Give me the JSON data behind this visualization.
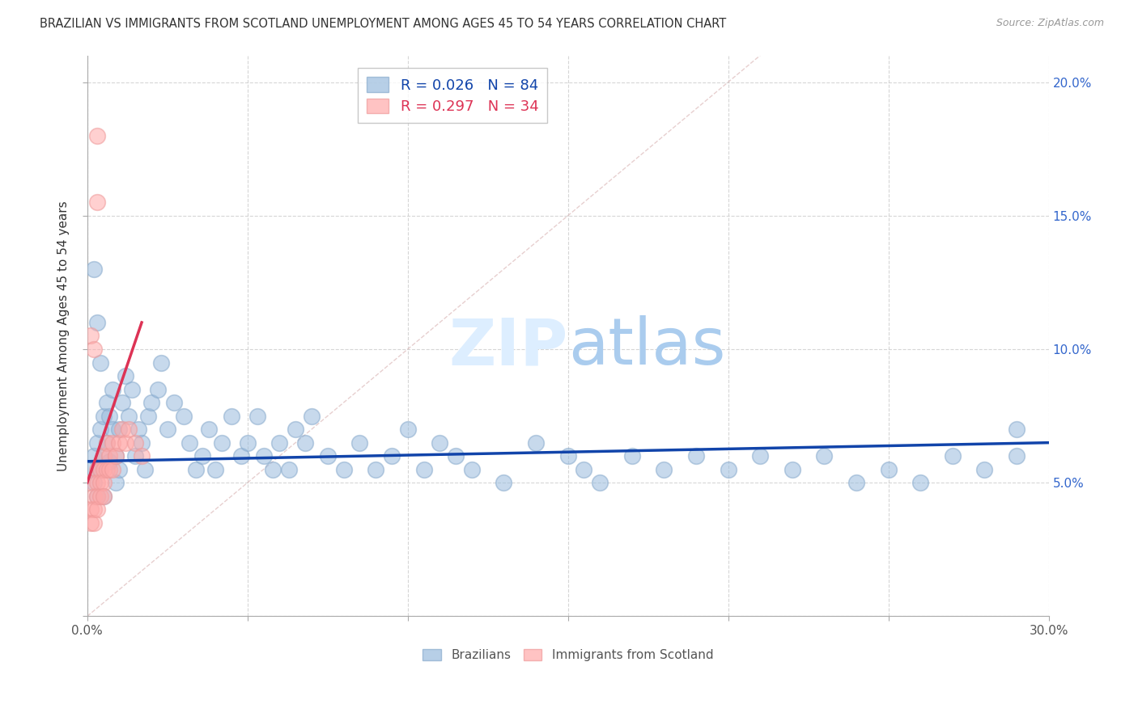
{
  "title": "BRAZILIAN VS IMMIGRANTS FROM SCOTLAND UNEMPLOYMENT AMONG AGES 45 TO 54 YEARS CORRELATION CHART",
  "source": "Source: ZipAtlas.com",
  "ylabel": "Unemployment Among Ages 45 to 54 years",
  "xlim": [
    0.0,
    0.3
  ],
  "ylim": [
    0.0,
    0.21
  ],
  "xticks": [
    0.0,
    0.05,
    0.1,
    0.15,
    0.2,
    0.25,
    0.3
  ],
  "yticks": [
    0.0,
    0.05,
    0.1,
    0.15,
    0.2
  ],
  "xticklabels": [
    "0.0%",
    "",
    "",
    "",
    "",
    "",
    "30.0%"
  ],
  "right_yticklabels": [
    "",
    "5.0%",
    "10.0%",
    "15.0%",
    "20.0%"
  ],
  "legend_label1": "Brazilians",
  "legend_label2": "Immigrants from Scotland",
  "R1": 0.026,
  "N1": 84,
  "R2": 0.297,
  "N2": 34,
  "color_blue": "#99BBDD",
  "color_pink": "#FFAAAA",
  "color_blue_edge": "#88AACC",
  "color_pink_edge": "#EE9999",
  "color_blue_line": "#1144AA",
  "color_pink_line": "#DD3355",
  "color_diag": "#CCCCCC",
  "background_color": "#FFFFFF",
  "blue_x": [
    0.001,
    0.002,
    0.002,
    0.003,
    0.003,
    0.004,
    0.004,
    0.005,
    0.005,
    0.005,
    0.006,
    0.006,
    0.007,
    0.007,
    0.008,
    0.008,
    0.009,
    0.009,
    0.01,
    0.01,
    0.011,
    0.012,
    0.013,
    0.014,
    0.015,
    0.016,
    0.017,
    0.018,
    0.019,
    0.02,
    0.022,
    0.023,
    0.025,
    0.027,
    0.03,
    0.032,
    0.034,
    0.036,
    0.038,
    0.04,
    0.042,
    0.045,
    0.048,
    0.05,
    0.053,
    0.055,
    0.058,
    0.06,
    0.063,
    0.065,
    0.068,
    0.07,
    0.075,
    0.08,
    0.085,
    0.09,
    0.095,
    0.1,
    0.105,
    0.11,
    0.115,
    0.12,
    0.13,
    0.14,
    0.15,
    0.155,
    0.16,
    0.17,
    0.18,
    0.19,
    0.2,
    0.21,
    0.22,
    0.23,
    0.24,
    0.25,
    0.26,
    0.27,
    0.28,
    0.29,
    0.002,
    0.003,
    0.004,
    0.29
  ],
  "blue_y": [
    0.055,
    0.06,
    0.05,
    0.065,
    0.045,
    0.055,
    0.07,
    0.06,
    0.045,
    0.075,
    0.065,
    0.08,
    0.058,
    0.075,
    0.07,
    0.085,
    0.06,
    0.05,
    0.055,
    0.07,
    0.08,
    0.09,
    0.075,
    0.085,
    0.06,
    0.07,
    0.065,
    0.055,
    0.075,
    0.08,
    0.085,
    0.095,
    0.07,
    0.08,
    0.075,
    0.065,
    0.055,
    0.06,
    0.07,
    0.055,
    0.065,
    0.075,
    0.06,
    0.065,
    0.075,
    0.06,
    0.055,
    0.065,
    0.055,
    0.07,
    0.065,
    0.075,
    0.06,
    0.055,
    0.065,
    0.055,
    0.06,
    0.07,
    0.055,
    0.065,
    0.06,
    0.055,
    0.05,
    0.065,
    0.06,
    0.055,
    0.05,
    0.06,
    0.055,
    0.06,
    0.055,
    0.06,
    0.055,
    0.06,
    0.05,
    0.055,
    0.05,
    0.06,
    0.055,
    0.06,
    0.13,
    0.11,
    0.095,
    0.07
  ],
  "pink_x": [
    0.001,
    0.001,
    0.001,
    0.002,
    0.002,
    0.002,
    0.003,
    0.003,
    0.003,
    0.003,
    0.004,
    0.004,
    0.004,
    0.005,
    0.005,
    0.005,
    0.005,
    0.006,
    0.006,
    0.007,
    0.007,
    0.008,
    0.008,
    0.009,
    0.01,
    0.011,
    0.012,
    0.013,
    0.015,
    0.017,
    0.001,
    0.002,
    0.003,
    0.003
  ],
  "pink_y": [
    0.05,
    0.04,
    0.035,
    0.045,
    0.04,
    0.035,
    0.055,
    0.05,
    0.045,
    0.04,
    0.055,
    0.05,
    0.045,
    0.06,
    0.055,
    0.05,
    0.045,
    0.065,
    0.055,
    0.06,
    0.055,
    0.065,
    0.055,
    0.06,
    0.065,
    0.07,
    0.065,
    0.07,
    0.065,
    0.06,
    0.105,
    0.1,
    0.155,
    0.18
  ]
}
